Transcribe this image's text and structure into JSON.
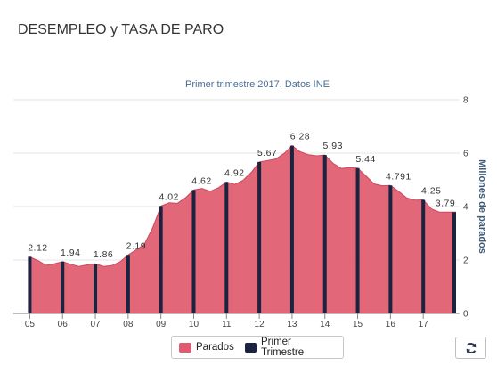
{
  "page": {
    "title": "DESEMPLEO y TASA DE PARO"
  },
  "chart_data": {
    "type": "area",
    "subtitle": "Primer trimestre 2017. Datos INE",
    "ylabel": "Millones de parados",
    "ylim": [
      0,
      8
    ],
    "yticks": [
      0,
      2,
      4,
      6,
      8
    ],
    "x_ticks": [
      "05",
      "06",
      "07",
      "08",
      "09",
      "10",
      "11",
      "12",
      "13",
      "14",
      "15",
      "16",
      "17"
    ],
    "grid": true,
    "legend_position": "bottom",
    "series": [
      {
        "name": "Parados",
        "color": "#e05a6e",
        "type": "area",
        "x": [
          2005.0,
          2005.25,
          2005.5,
          2005.75,
          2006.0,
          2006.25,
          2006.5,
          2006.75,
          2007.0,
          2007.25,
          2007.5,
          2007.75,
          2008.0,
          2008.25,
          2008.5,
          2008.75,
          2009.0,
          2009.25,
          2009.5,
          2009.75,
          2010.0,
          2010.25,
          2010.5,
          2010.75,
          2011.0,
          2011.25,
          2011.5,
          2011.75,
          2012.0,
          2012.25,
          2012.5,
          2012.75,
          2013.0,
          2013.25,
          2013.5,
          2013.75,
          2014.0,
          2014.25,
          2014.5,
          2014.75,
          2015.0,
          2015.25,
          2015.5,
          2015.75,
          2016.0,
          2016.25,
          2016.5,
          2016.75,
          2017.0,
          2017.25,
          2017.5
        ],
        "values": [
          2.12,
          1.98,
          1.8,
          1.86,
          1.94,
          1.84,
          1.76,
          1.82,
          1.86,
          1.76,
          1.79,
          1.93,
          2.19,
          2.38,
          2.6,
          3.21,
          4.02,
          4.14,
          4.12,
          4.33,
          4.62,
          4.68,
          4.57,
          4.7,
          4.92,
          4.83,
          4.98,
          5.27,
          5.67,
          5.72,
          5.78,
          5.98,
          6.28,
          6.05,
          5.94,
          5.9,
          5.93,
          5.62,
          5.43,
          5.46,
          5.44,
          5.15,
          4.85,
          4.78,
          4.791,
          4.57,
          4.32,
          4.24,
          4.25,
          3.91,
          3.79
        ]
      },
      {
        "name": "Primer Trimestre",
        "color": "#1a2340",
        "type": "bar",
        "x": [
          2005,
          2006,
          2007,
          2008,
          2009,
          2010,
          2011,
          2012,
          2013,
          2014,
          2015,
          2016,
          2017
        ],
        "values": [
          2.12,
          1.94,
          1.86,
          2.19,
          4.02,
          4.62,
          4.92,
          5.67,
          6.28,
          5.93,
          5.44,
          4.791,
          4.25
        ],
        "labels": [
          "2.12",
          "1.94",
          "1.86",
          "2.19",
          "4.02",
          "4.62",
          "4.92",
          "5.67",
          "6.28",
          "5.93",
          "5.44",
          "4.791",
          "4.25"
        ]
      }
    ],
    "last_label": {
      "x": 2018.0,
      "value": 3.79,
      "text": "3.79"
    }
  },
  "legend": {
    "items": [
      {
        "label": "Parados",
        "color": "#e05a6e"
      },
      {
        "label": "Primer Trimestre",
        "color": "#1a2340"
      }
    ]
  },
  "toolbar": {
    "refresh_icon": "refresh-icon"
  }
}
